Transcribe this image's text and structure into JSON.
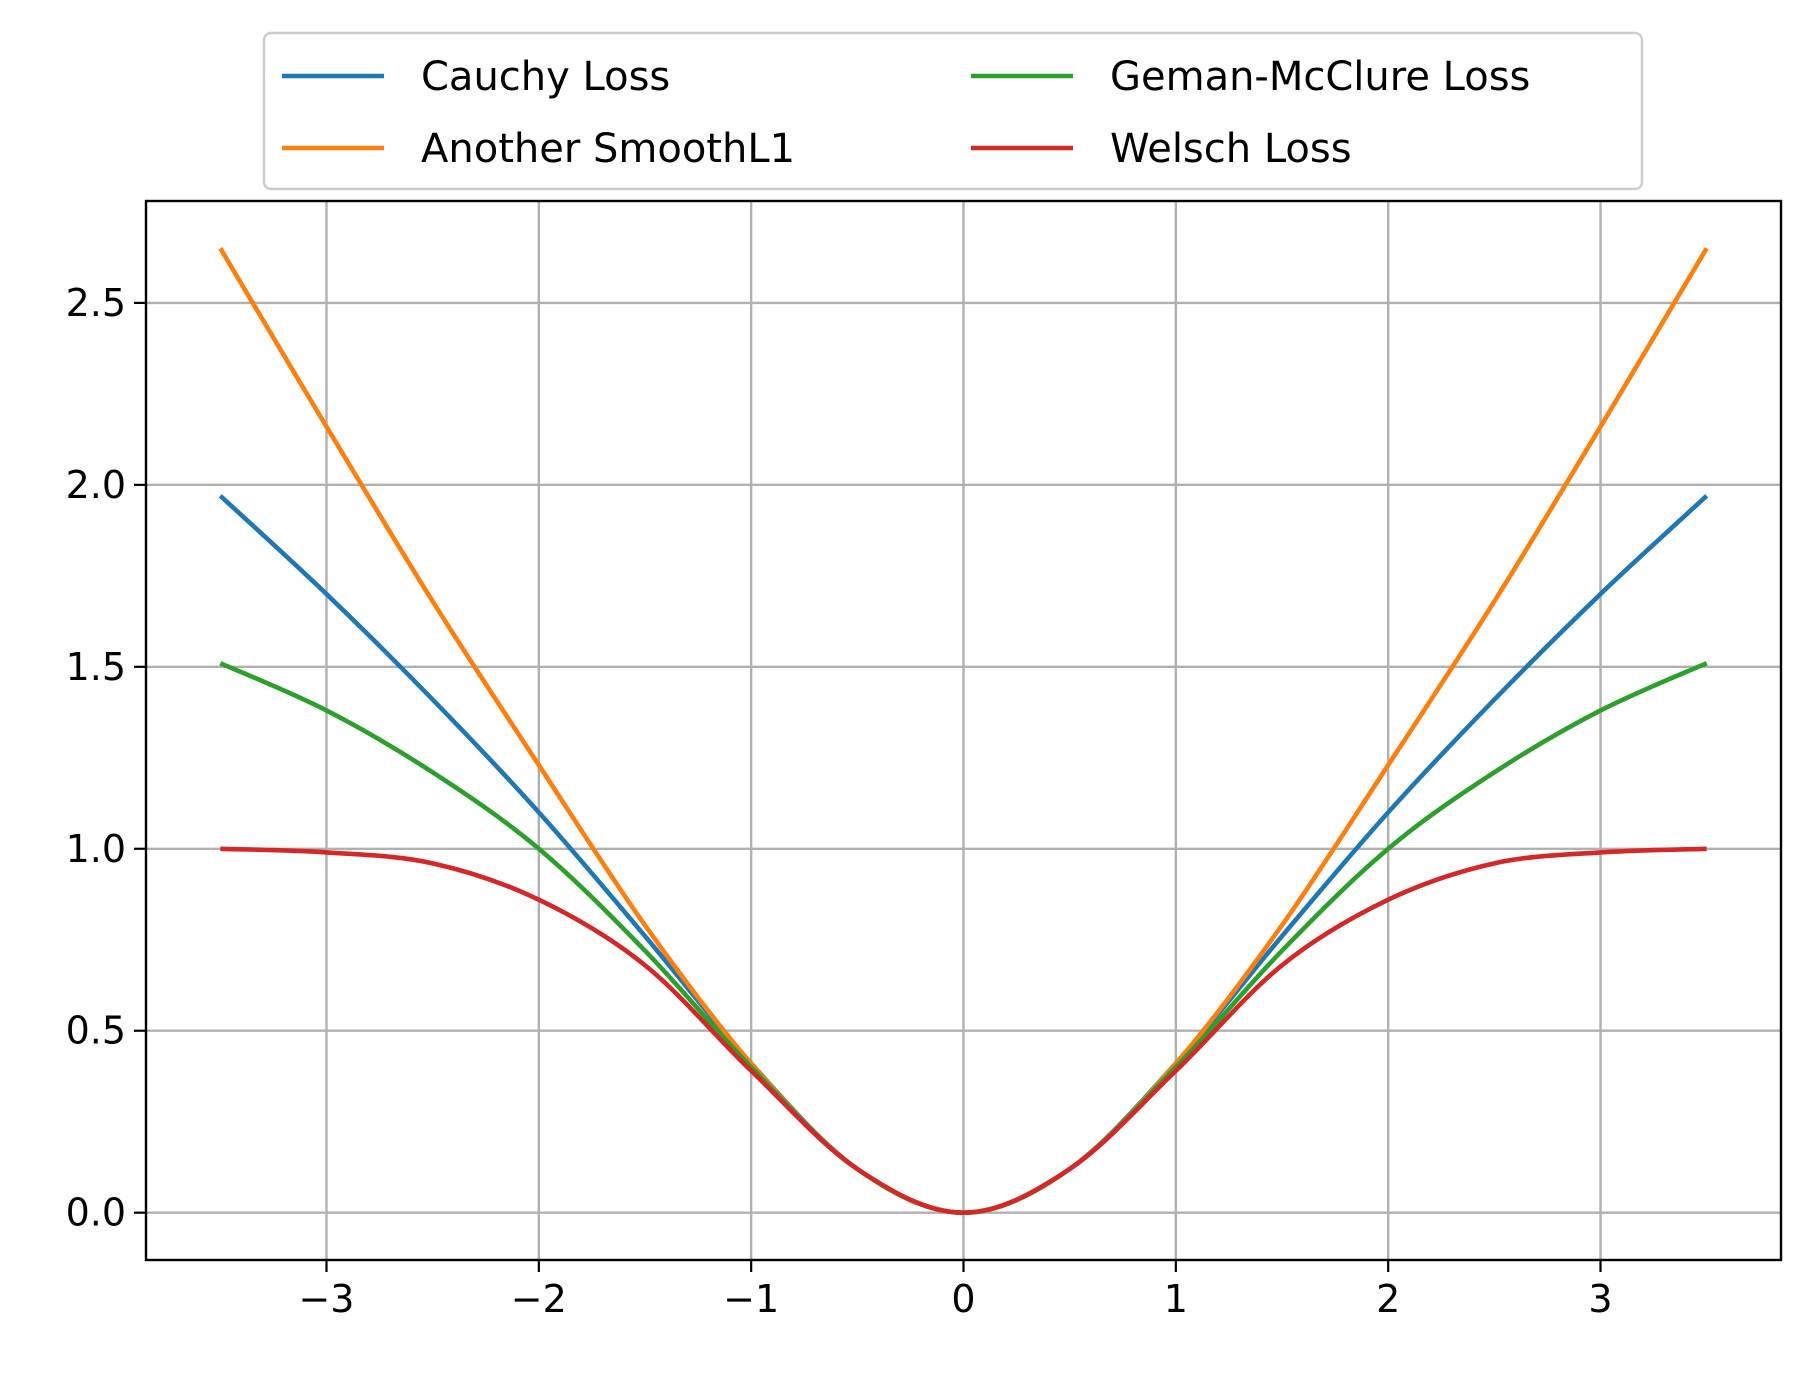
{
  "chart_data": {
    "type": "line",
    "title": "",
    "xlabel": "",
    "ylabel": "",
    "xlim": [
      -3.85,
      3.85
    ],
    "ylim": [
      -0.13,
      2.78
    ],
    "x_range": [
      -3.5,
      3.5
    ],
    "grid": true,
    "legend_position": "top-center",
    "legend_columns": 2,
    "x_ticks": [
      {
        "value": -3,
        "label": "−3"
      },
      {
        "value": -2,
        "label": "−2"
      },
      {
        "value": -1,
        "label": "−1"
      },
      {
        "value": 0,
        "label": "0"
      },
      {
        "value": 1,
        "label": "1"
      },
      {
        "value": 2,
        "label": "2"
      },
      {
        "value": 3,
        "label": "3"
      }
    ],
    "y_ticks": [
      {
        "value": 0.0,
        "label": "0.0"
      },
      {
        "value": 0.5,
        "label": "0.5"
      },
      {
        "value": 1.0,
        "label": "1.0"
      },
      {
        "value": 1.5,
        "label": "1.5"
      },
      {
        "value": 2.0,
        "label": "2.0"
      },
      {
        "value": 2.5,
        "label": "2.5"
      }
    ],
    "series": [
      {
        "name": "Cauchy Loss",
        "color": "#1f77b4",
        "x": [
          -3.5,
          -3.0,
          -2.5,
          -2.0,
          -1.5,
          -1.0,
          -0.5,
          0.0,
          0.5,
          1.0,
          1.5,
          2.0,
          2.5,
          3.0,
          3.5
        ],
        "y": [
          1.97,
          1.7,
          1.41,
          1.1,
          0.76,
          0.41,
          0.12,
          0.0,
          0.12,
          0.41,
          0.76,
          1.1,
          1.41,
          1.7,
          1.97
        ]
      },
      {
        "name": "Another SmoothL1",
        "color": "#ff7f0e",
        "x": [
          -3.5,
          -3.0,
          -2.5,
          -2.0,
          -1.5,
          -1.0,
          -0.5,
          0.0,
          0.5,
          1.0,
          1.5,
          2.0,
          2.5,
          3.0,
          3.5
        ],
        "y": [
          2.65,
          2.16,
          1.68,
          1.23,
          0.79,
          0.41,
          0.12,
          0.0,
          0.12,
          0.41,
          0.79,
          1.23,
          1.68,
          2.16,
          2.65
        ]
      },
      {
        "name": "Geman-McClure Loss",
        "color": "#2ca02c",
        "x": [
          -3.5,
          -3.0,
          -2.5,
          -2.0,
          -1.5,
          -1.0,
          -0.5,
          0.0,
          0.5,
          1.0,
          1.5,
          2.0,
          2.5,
          3.0,
          3.5
        ],
        "y": [
          1.51,
          1.38,
          1.21,
          1.0,
          0.72,
          0.4,
          0.12,
          0.0,
          0.12,
          0.4,
          0.72,
          1.0,
          1.21,
          1.38,
          1.51
        ]
      },
      {
        "name": "Welsch Loss",
        "color": "#d62728",
        "x": [
          -3.5,
          -3.0,
          -2.5,
          -2.0,
          -1.5,
          -1.0,
          -0.5,
          0.0,
          0.5,
          1.0,
          1.5,
          2.0,
          2.5,
          3.0,
          3.5
        ],
        "y": [
          1.0,
          0.99,
          0.96,
          0.86,
          0.68,
          0.39,
          0.12,
          0.0,
          0.12,
          0.39,
          0.68,
          0.86,
          0.96,
          0.99,
          1.0
        ]
      }
    ]
  }
}
